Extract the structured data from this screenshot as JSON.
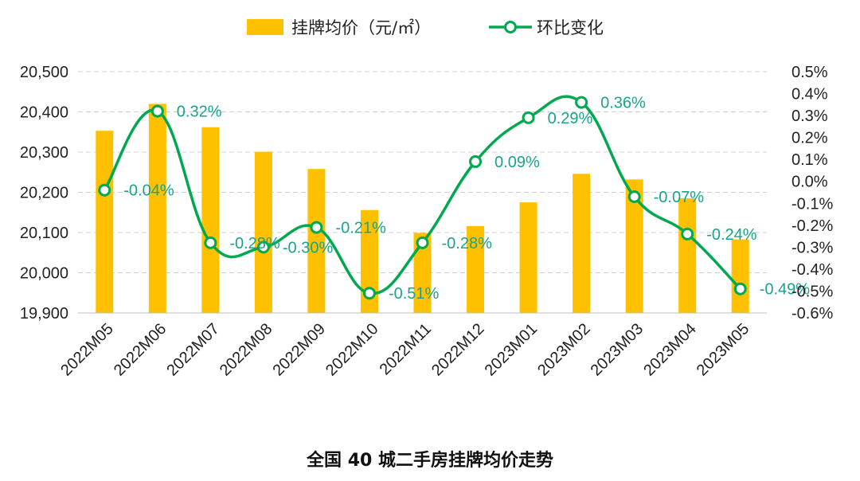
{
  "chart_data": {
    "type": "bar+line",
    "title": "全国 40 城二手房挂牌均价走势",
    "categories": [
      "2022M05",
      "2022M06",
      "2022M07",
      "2022M08",
      "2022M09",
      "2022M10",
      "2022M11",
      "2022M12",
      "2023M01",
      "2023M02",
      "2023M03",
      "2023M04",
      "2023M05"
    ],
    "series": [
      {
        "name": "挂牌均价（元/㎡）",
        "type": "bar",
        "axis": "left",
        "color": "#FFC000",
        "values": [
          20353,
          20420,
          20362,
          20301,
          20258,
          20156,
          20099,
          20116,
          20175,
          20246,
          20232,
          20185,
          20083
        ]
      },
      {
        "name": "环比变化",
        "type": "line",
        "axis": "right",
        "color": "#00A84F",
        "values": [
          -0.04,
          0.32,
          -0.28,
          -0.3,
          -0.21,
          -0.51,
          -0.28,
          0.09,
          0.29,
          0.36,
          -0.07,
          -0.24,
          -0.49
        ],
        "labels": [
          "-0.04%",
          "0.32%",
          "-0.28%",
          "-0.30%",
          "-0.21%",
          "-0.51%",
          "-0.28%",
          "0.09%",
          "0.29%",
          "0.36%",
          "-0.07%",
          "-0.24%",
          "-0.49%"
        ]
      }
    ],
    "y_left": {
      "min": 19900,
      "max": 20500,
      "ticks": [
        "19,900",
        "20,000",
        "20,100",
        "20,200",
        "20,300",
        "20,400",
        "20,500"
      ]
    },
    "y_right": {
      "min": -0.6,
      "max": 0.5,
      "ticks": [
        "-0.6%",
        "-0.5%",
        "-0.4%",
        "-0.3%",
        "-0.2%",
        "-0.1%",
        "0.0%",
        "0.1%",
        "0.2%",
        "0.3%",
        "0.4%",
        "0.5%"
      ]
    },
    "legend_position": "top-center",
    "grid": true,
    "label_color": "#1AA38C"
  }
}
